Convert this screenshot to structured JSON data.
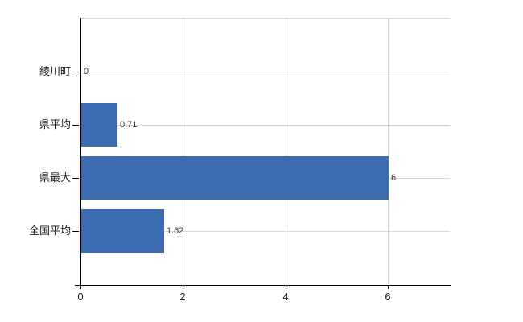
{
  "chart_data": {
    "type": "bar",
    "orientation": "horizontal",
    "title": "",
    "categories": [
      "綾川町",
      "県平均",
      "県最大",
      "全国平均"
    ],
    "values": [
      0,
      0.71,
      6,
      1.62
    ],
    "value_labels": [
      "0",
      "0.71",
      "6",
      "1.62"
    ],
    "x_tick_labels": [
      "0",
      "2",
      "4",
      "6"
    ],
    "x_tick_values": [
      0,
      2,
      4,
      6
    ],
    "xlim": [
      0,
      7.2
    ],
    "grid": true,
    "legend_position": "none",
    "colors": {
      "bar": "#3d6bb0",
      "grid": "#d9d9d9",
      "axis": "#000000",
      "category_text": "#222222",
      "value_text": "#333333",
      "background": "#ffffff"
    }
  }
}
